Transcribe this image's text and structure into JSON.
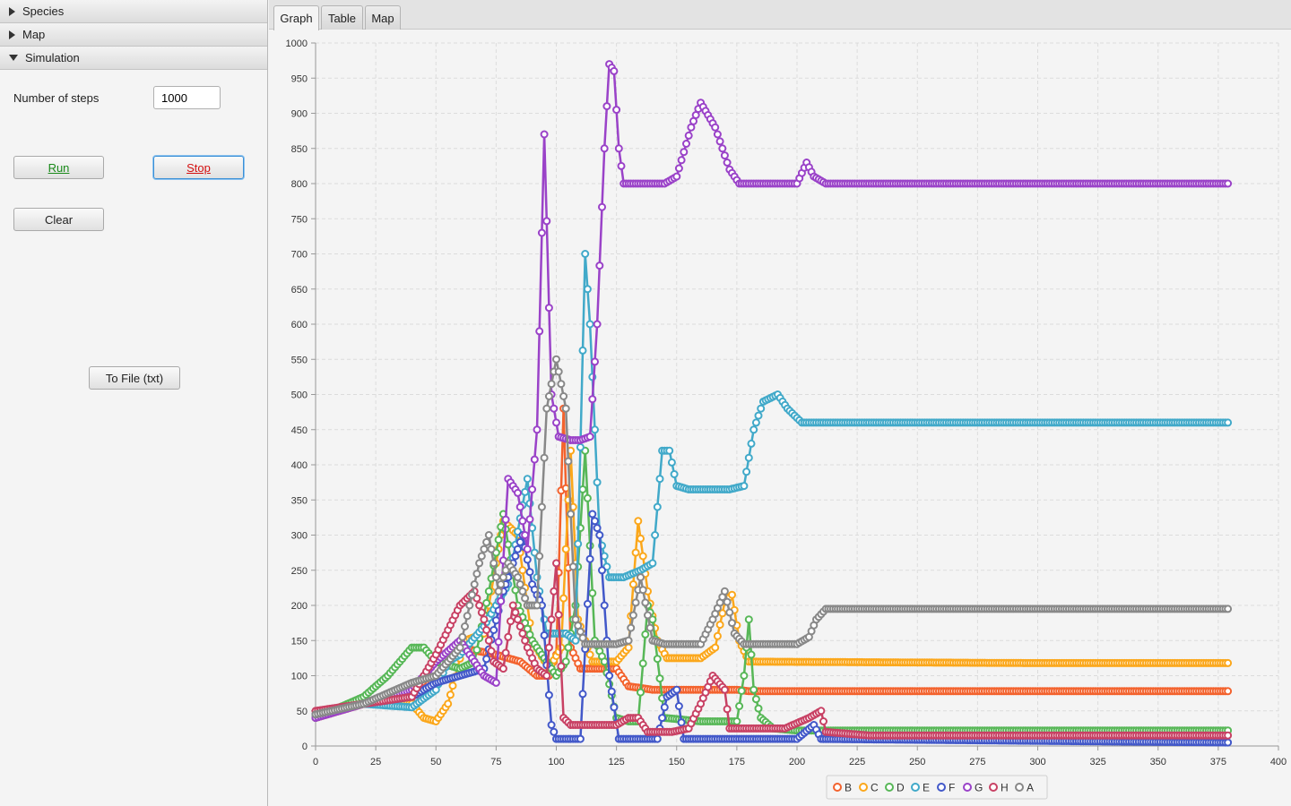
{
  "sidebar": {
    "sections": [
      {
        "label": "Species",
        "expanded": false
      },
      {
        "label": "Map",
        "expanded": false
      },
      {
        "label": "Simulation",
        "expanded": true
      }
    ],
    "steps_label": "Number of steps",
    "steps_value": "1000",
    "run_label": "Run",
    "stop_label": "Stop",
    "clear_label": "Clear",
    "file_label": "To File (txt)"
  },
  "tabs": [
    {
      "label": "Graph",
      "active": true
    },
    {
      "label": "Table",
      "active": false
    },
    {
      "label": "Map",
      "active": false
    }
  ],
  "chart_data": {
    "type": "line",
    "title": "",
    "xlabel": "",
    "ylabel": "",
    "xlim": [
      0,
      400
    ],
    "ylim": [
      0,
      1000
    ],
    "xticks": [
      0,
      25,
      50,
      75,
      100,
      125,
      150,
      175,
      200,
      225,
      250,
      275,
      300,
      325,
      350,
      375,
      400
    ],
    "yticks": [
      0,
      50,
      100,
      150,
      200,
      250,
      300,
      350,
      400,
      450,
      500,
      550,
      600,
      650,
      700,
      750,
      800,
      850,
      900,
      950,
      1000
    ],
    "grid": true,
    "legend_position": "bottom",
    "series": [
      {
        "name": "B",
        "color": "#f3622d",
        "points": [
          [
            0,
            40
          ],
          [
            20,
            60
          ],
          [
            40,
            60
          ],
          [
            60,
            140
          ],
          [
            75,
            130
          ],
          [
            85,
            120
          ],
          [
            92,
            100
          ],
          [
            97,
            100
          ],
          [
            100,
            130
          ],
          [
            103,
            480
          ],
          [
            106,
            140
          ],
          [
            110,
            110
          ],
          [
            120,
            110
          ],
          [
            125,
            110
          ],
          [
            130,
            85
          ],
          [
            140,
            80
          ],
          [
            150,
            80
          ],
          [
            155,
            80
          ],
          [
            162,
            80
          ],
          [
            168,
            80
          ],
          [
            172,
            80
          ],
          [
            175,
            80
          ],
          [
            180,
            78
          ],
          [
            200,
            78
          ],
          [
            379,
            78
          ]
        ]
      },
      {
        "name": "C",
        "color": "#fba71b",
        "points": [
          [
            0,
            45
          ],
          [
            20,
            65
          ],
          [
            40,
            60
          ],
          [
            45,
            40
          ],
          [
            50,
            35
          ],
          [
            55,
            60
          ],
          [
            62,
            150
          ],
          [
            70,
            160
          ],
          [
            78,
            320
          ],
          [
            84,
            300
          ],
          [
            90,
            150
          ],
          [
            97,
            110
          ],
          [
            102,
            140
          ],
          [
            106,
            420
          ],
          [
            109,
            180
          ],
          [
            115,
            120
          ],
          [
            125,
            120
          ],
          [
            130,
            140
          ],
          [
            134,
            320
          ],
          [
            138,
            220
          ],
          [
            142,
            150
          ],
          [
            146,
            125
          ],
          [
            160,
            125
          ],
          [
            166,
            140
          ],
          [
            170,
            205
          ],
          [
            173,
            215
          ],
          [
            176,
            150
          ],
          [
            180,
            120
          ],
          [
            295,
            118
          ],
          [
            379,
            118
          ]
        ]
      },
      {
        "name": "D",
        "color": "#57b757",
        "points": [
          [
            0,
            40
          ],
          [
            20,
            70
          ],
          [
            30,
            100
          ],
          [
            40,
            140
          ],
          [
            45,
            140
          ],
          [
            50,
            120
          ],
          [
            60,
            110
          ],
          [
            66,
            120
          ],
          [
            72,
            220
          ],
          [
            78,
            330
          ],
          [
            84,
            200
          ],
          [
            90,
            150
          ],
          [
            96,
            120
          ],
          [
            100,
            100
          ],
          [
            104,
            120
          ],
          [
            108,
            200
          ],
          [
            112,
            420
          ],
          [
            116,
            150
          ],
          [
            120,
            120
          ],
          [
            125,
            40
          ],
          [
            130,
            35
          ],
          [
            134,
            35
          ],
          [
            138,
            200
          ],
          [
            140,
            180
          ],
          [
            145,
            40
          ],
          [
            160,
            35
          ],
          [
            175,
            35
          ],
          [
            178,
            100
          ],
          [
            180,
            180
          ],
          [
            182,
            80
          ],
          [
            185,
            40
          ],
          [
            190,
            25
          ],
          [
            200,
            22
          ],
          [
            379,
            22
          ]
        ]
      },
      {
        "name": "E",
        "color": "#41a9c9",
        "points": [
          [
            0,
            45
          ],
          [
            20,
            60
          ],
          [
            40,
            55
          ],
          [
            50,
            80
          ],
          [
            55,
            120
          ],
          [
            60,
            130
          ],
          [
            70,
            170
          ],
          [
            80,
            230
          ],
          [
            88,
            380
          ],
          [
            92,
            240
          ],
          [
            96,
            160
          ],
          [
            100,
            160
          ],
          [
            104,
            160
          ],
          [
            108,
            150
          ],
          [
            112,
            700
          ],
          [
            114,
            600
          ],
          [
            118,
            300
          ],
          [
            122,
            240
          ],
          [
            128,
            240
          ],
          [
            135,
            250
          ],
          [
            140,
            260
          ],
          [
            144,
            420
          ],
          [
            147,
            420
          ],
          [
            150,
            370
          ],
          [
            155,
            365
          ],
          [
            160,
            365
          ],
          [
            166,
            365
          ],
          [
            172,
            365
          ],
          [
            178,
            370
          ],
          [
            182,
            450
          ],
          [
            186,
            490
          ],
          [
            192,
            500
          ],
          [
            196,
            480
          ],
          [
            202,
            460
          ],
          [
            379,
            460
          ]
        ]
      },
      {
        "name": "F",
        "color": "#4258c9",
        "points": [
          [
            0,
            45
          ],
          [
            20,
            60
          ],
          [
            40,
            70
          ],
          [
            50,
            90
          ],
          [
            60,
            100
          ],
          [
            70,
            110
          ],
          [
            78,
            220
          ],
          [
            82,
            260
          ],
          [
            86,
            300
          ],
          [
            90,
            230
          ],
          [
            94,
            200
          ],
          [
            98,
            30
          ],
          [
            100,
            10
          ],
          [
            105,
            10
          ],
          [
            110,
            10
          ],
          [
            115,
            330
          ],
          [
            118,
            300
          ],
          [
            122,
            100
          ],
          [
            126,
            10
          ],
          [
            135,
            10
          ],
          [
            142,
            10
          ],
          [
            146,
            70
          ],
          [
            150,
            80
          ],
          [
            153,
            10
          ],
          [
            170,
            10
          ],
          [
            200,
            10
          ],
          [
            207,
            30
          ],
          [
            210,
            10
          ],
          [
            379,
            5
          ]
        ]
      },
      {
        "name": "G",
        "color": "#9a42c8",
        "points": [
          [
            0,
            40
          ],
          [
            20,
            60
          ],
          [
            40,
            80
          ],
          [
            50,
            120
          ],
          [
            60,
            150
          ],
          [
            70,
            100
          ],
          [
            75,
            90
          ],
          [
            80,
            380
          ],
          [
            84,
            360
          ],
          [
            88,
            280
          ],
          [
            92,
            450
          ],
          [
            95,
            870
          ],
          [
            98,
            500
          ],
          [
            101,
            440
          ],
          [
            106,
            435
          ],
          [
            110,
            435
          ],
          [
            114,
            440
          ],
          [
            117,
            600
          ],
          [
            120,
            850
          ],
          [
            122,
            970
          ],
          [
            124,
            960
          ],
          [
            126,
            850
          ],
          [
            128,
            800
          ],
          [
            135,
            800
          ],
          [
            145,
            800
          ],
          [
            150,
            810
          ],
          [
            156,
            880
          ],
          [
            160,
            915
          ],
          [
            166,
            880
          ],
          [
            172,
            820
          ],
          [
            176,
            800
          ],
          [
            186,
            800
          ],
          [
            194,
            800
          ],
          [
            200,
            800
          ],
          [
            204,
            830
          ],
          [
            207,
            810
          ],
          [
            212,
            800
          ],
          [
            260,
            800
          ],
          [
            379,
            800
          ]
        ]
      },
      {
        "name": "H",
        "color": "#c84164",
        "points": [
          [
            0,
            50
          ],
          [
            20,
            60
          ],
          [
            40,
            70
          ],
          [
            50,
            130
          ],
          [
            60,
            200
          ],
          [
            66,
            220
          ],
          [
            70,
            180
          ],
          [
            74,
            120
          ],
          [
            78,
            110
          ],
          [
            82,
            200
          ],
          [
            88,
            140
          ],
          [
            92,
            110
          ],
          [
            96,
            100
          ],
          [
            100,
            260
          ],
          [
            103,
            40
          ],
          [
            106,
            30
          ],
          [
            115,
            30
          ],
          [
            125,
            30
          ],
          [
            130,
            40
          ],
          [
            134,
            40
          ],
          [
            138,
            20
          ],
          [
            148,
            20
          ],
          [
            155,
            25
          ],
          [
            160,
            60
          ],
          [
            165,
            100
          ],
          [
            170,
            80
          ],
          [
            172,
            25
          ],
          [
            180,
            25
          ],
          [
            195,
            25
          ],
          [
            205,
            40
          ],
          [
            210,
            50
          ],
          [
            212,
            20
          ],
          [
            230,
            15
          ],
          [
            379,
            15
          ]
        ]
      },
      {
        "name": "A",
        "color": "#888888",
        "points": [
          [
            0,
            45
          ],
          [
            20,
            60
          ],
          [
            40,
            90
          ],
          [
            50,
            100
          ],
          [
            60,
            140
          ],
          [
            68,
            260
          ],
          [
            72,
            300
          ],
          [
            76,
            220
          ],
          [
            80,
            260
          ],
          [
            84,
            240
          ],
          [
            88,
            200
          ],
          [
            92,
            200
          ],
          [
            96,
            480
          ],
          [
            100,
            550
          ],
          [
            104,
            480
          ],
          [
            108,
            180
          ],
          [
            112,
            145
          ],
          [
            125,
            145
          ],
          [
            130,
            150
          ],
          [
            135,
            240
          ],
          [
            140,
            150
          ],
          [
            145,
            145
          ],
          [
            160,
            145
          ],
          [
            165,
            180
          ],
          [
            170,
            220
          ],
          [
            174,
            160
          ],
          [
            178,
            145
          ],
          [
            190,
            145
          ],
          [
            200,
            145
          ],
          [
            205,
            155
          ],
          [
            208,
            180
          ],
          [
            212,
            195
          ],
          [
            225,
            195
          ],
          [
            379,
            195
          ]
        ]
      }
    ]
  }
}
